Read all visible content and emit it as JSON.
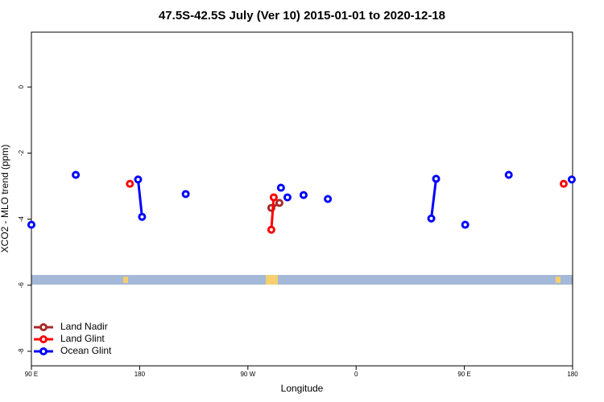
{
  "chart_data": {
    "type": "line",
    "title": "47.5S-42.5S July (Ver 10)   2015-01-01 to 2020-12-18",
    "x_label": "Longitude",
    "y_label": "XCO2 - MLO trend (ppm)",
    "xlim": [
      90,
      540
    ],
    "ylim": [
      -8.44,
      1.66
    ],
    "xticks": [
      {
        "value": 90,
        "label": "90 E"
      },
      180,
      {
        "value": 270,
        "label": "90 W"
      },
      {
        "value": 360,
        "label": "0"
      },
      {
        "value": 450,
        "label": "90 E"
      },
      {
        "value": 540,
        "label": "180"
      }
    ],
    "yticks": [
      0,
      -2,
      -4,
      -6,
      -8
    ],
    "legend": "bottom-left",
    "series": [
      {
        "name": "Land Nadir",
        "color": "#a52a2a",
        "x": [
          289.5,
          296.2
        ],
        "values": [
          -3.66,
          -3.51
        ]
      },
      {
        "name": "Land Glint",
        "color": "#ff0000",
        "x": [
          171.9,
          null,
          289.5,
          291.5,
          null,
          532.6
        ],
        "values": [
          -2.93,
          null,
          -4.32,
          -3.34,
          null,
          -2.93
        ]
      },
      {
        "name": "Ocean Glint",
        "color": "#0000ff",
        "x": [
          90,
          null,
          126.9,
          null,
          178.7,
          182.0,
          null,
          218.3,
          null,
          297.5,
          null,
          302.9,
          null,
          316.3,
          null,
          336.5,
          null,
          422.5,
          426.5,
          null,
          450.7,
          null,
          486.9,
          null,
          539.3
        ],
        "values": [
          -4.17,
          null,
          -2.66,
          null,
          -2.8,
          -3.93,
          null,
          -3.24,
          null,
          -3.05,
          null,
          -3.34,
          null,
          -3.27,
          null,
          -3.39,
          null,
          -3.98,
          -2.78,
          null,
          -4.17,
          null,
          -2.66,
          null,
          -2.8
        ]
      }
    ]
  }
}
